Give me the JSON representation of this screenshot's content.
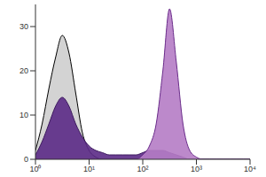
{
  "chart_data": {
    "type": "area",
    "log": "x",
    "grid": false,
    "x": [
      1,
      1.33,
      1.78,
      2.37,
      3.16,
      4.22,
      5.62,
      7.5,
      10,
      13.3,
      17.8,
      23.7,
      31.6,
      42.2,
      56.2,
      75,
      100,
      133,
      178,
      237,
      316,
      422,
      562,
      750,
      1000,
      1334,
      1778,
      2371,
      3162,
      4217,
      5623,
      7499,
      10000
    ],
    "xlim": [
      1,
      10000
    ],
    "xticks": [
      {
        "value": 1,
        "label": "10⁰"
      },
      {
        "value": 10,
        "label": "10¹"
      },
      {
        "value": 100,
        "label": "10²"
      },
      {
        "value": 1000,
        "label": "10³"
      },
      {
        "value": 10000,
        "label": "10⁴"
      }
    ],
    "ylim": [
      0,
      35
    ],
    "yticks": [
      0,
      10,
      20,
      30
    ],
    "series": [
      {
        "color": "#d3d3d3",
        "values": [
          2,
          8,
          16,
          23,
          28,
          24,
          15,
          6,
          2,
          0.5,
          0,
          0,
          0,
          0,
          0,
          0,
          0,
          0,
          0,
          0,
          0,
          0,
          0,
          0,
          0,
          0,
          0,
          0,
          0,
          0,
          0,
          0,
          0
        ]
      },
      {
        "color": "#5b2a86",
        "values": [
          1,
          4,
          8,
          12,
          14,
          12,
          8,
          5,
          3,
          2,
          1.5,
          1,
          1,
          1,
          1,
          1,
          1.5,
          2,
          2,
          2,
          1.5,
          1,
          0.5,
          0,
          0,
          0,
          0,
          0,
          0,
          0,
          0,
          0,
          0
        ]
      },
      {
        "color": "#b57cc5",
        "values": [
          0,
          0,
          0,
          0,
          0,
          0,
          0,
          0,
          0,
          0,
          0,
          0,
          0,
          0,
          0,
          0,
          1,
          3,
          8,
          20,
          34,
          22,
          8,
          2,
          0.5,
          0,
          0,
          0,
          0,
          0,
          0,
          0,
          0
        ]
      }
    ]
  }
}
